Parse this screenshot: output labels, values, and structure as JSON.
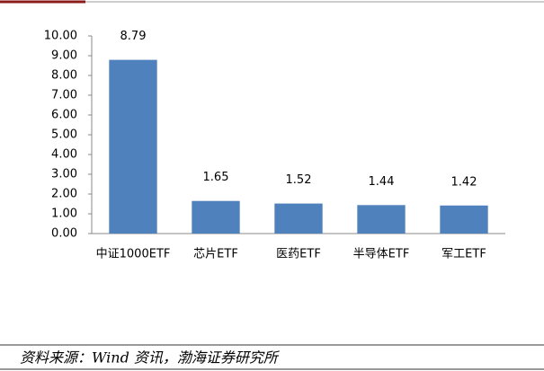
{
  "chart_data": {
    "type": "bar",
    "categories": [
      "中证1000ETF",
      "芯片ETF",
      "医药ETF",
      "半导体ETF",
      "军工ETF"
    ],
    "values": [
      8.79,
      1.65,
      1.52,
      1.44,
      1.42
    ],
    "color": "#4f81bd",
    "ylim": [
      0,
      10
    ],
    "yticks": [
      {
        "value": 0,
        "label": "0.00"
      },
      {
        "value": 1,
        "label": "1.00"
      },
      {
        "value": 2,
        "label": "2.00"
      },
      {
        "value": 3,
        "label": "3.00"
      },
      {
        "value": 4,
        "label": "4.00"
      },
      {
        "value": 5,
        "label": "5.00"
      },
      {
        "value": 6,
        "label": "6.00"
      },
      {
        "value": 7,
        "label": "7.00"
      },
      {
        "value": 8,
        "label": "8.00"
      },
      {
        "value": 9,
        "label": "9.00"
      },
      {
        "value": 10,
        "label": "10.00"
      }
    ],
    "source": "资料来源：Wind 资讯，渤海证券研究所"
  }
}
